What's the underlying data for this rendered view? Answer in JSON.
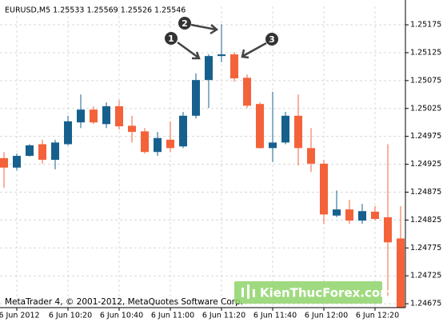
{
  "chart_data": {
    "type": "candlestick",
    "title": "EURUSD,M5  1.25533 1.25569 1.25526 1.25546",
    "footer": "MetaTrader 4, © 2001-2012, MetaQuotes Software Corp.",
    "watermark": "KienThucForex.com",
    "annotations": [
      "1",
      "2",
      "3"
    ],
    "categories": [
      null,
      "6 Jun 2012",
      null,
      null,
      null,
      "6 Jun 10:20",
      null,
      null,
      null,
      "6 Jun 10:40",
      null,
      null,
      null,
      "6 Jun 11:00",
      null,
      null,
      null,
      "6 Jun 11:20",
      null,
      null,
      null,
      "6 Jun 11:40",
      null,
      null,
      null,
      "6 Jun 12:00",
      null,
      null,
      null,
      "6 Jun 12:20",
      null,
      null
    ],
    "open": [
      1.24936,
      1.24919,
      1.2494,
      1.24961,
      1.24933,
      1.24961,
      1.25,
      1.25023,
      1.24997,
      1.25029,
      1.24994,
      1.24984,
      1.24947,
      1.24969,
      1.24957,
      1.25012,
      1.25076,
      1.25119,
      1.25122,
      1.2508,
      1.25033,
      1.24954,
      1.24964,
      1.25012,
      1.24954,
      1.24926,
      1.24833,
      1.24844,
      1.24824,
      1.2484,
      1.2483,
      1.24792
    ],
    "high": [
      1.24947,
      1.24944,
      1.24961,
      1.24969,
      1.24969,
      1.25012,
      1.2505,
      1.25029,
      1.25036,
      1.2504,
      1.25012,
      1.2499,
      1.24983,
      1.25002,
      1.25019,
      1.25088,
      1.25122,
      1.25176,
      1.25126,
      1.25086,
      1.25036,
      1.25055,
      1.25019,
      1.2505,
      1.2499,
      1.24933,
      1.24878,
      1.24861,
      1.24854,
      1.2485,
      1.24961,
      1.2485
    ],
    "low": [
      1.24883,
      1.24914,
      1.24939,
      1.24926,
      1.24916,
      1.24959,
      1.2499,
      1.24997,
      1.2499,
      1.24987,
      1.24964,
      1.24944,
      1.2494,
      1.24947,
      1.24954,
      1.25007,
      1.25026,
      1.25108,
      1.25073,
      1.25026,
      1.24953,
      1.24929,
      1.24961,
      1.24923,
      1.24911,
      1.24818,
      1.2483,
      1.24818,
      1.24818,
      1.24824,
      1.24689,
      1.24668
    ],
    "close": [
      1.24919,
      1.2494,
      1.24959,
      1.24933,
      1.24964,
      1.25002,
      1.25023,
      1.25,
      1.25029,
      1.24993,
      1.24983,
      1.24947,
      1.24972,
      1.24954,
      1.25012,
      1.25076,
      1.25119,
      1.25122,
      1.25079,
      1.2503,
      1.24954,
      1.24964,
      1.25012,
      1.24954,
      1.24926,
      1.24835,
      1.24844,
      1.24824,
      1.24841,
      1.24827,
      1.24785,
      1.24668
    ],
    "up_color": "#17608e",
    "down_color": "#f4623a",
    "ylim": [
      1.24668,
      1.25208
    ],
    "yticks": [
      1.25175,
      1.25125,
      1.25075,
      1.25025,
      1.24975,
      1.24925,
      1.24875,
      1.24825,
      1.24775,
      1.24725,
      1.24675
    ],
    "grid": true
  }
}
